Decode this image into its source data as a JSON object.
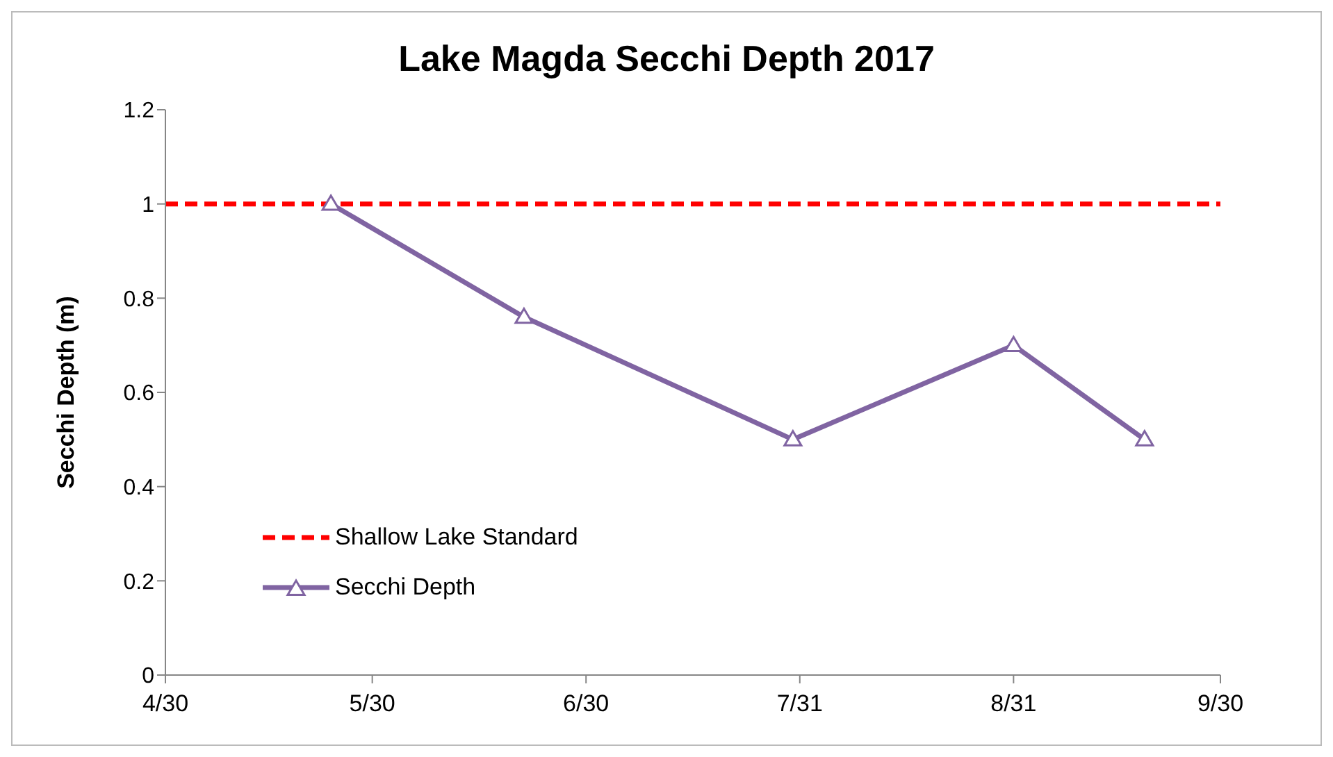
{
  "chart_data": {
    "type": "line",
    "title": "Lake Magda Secchi Depth 2017",
    "ylabel": "Secchi Depth (m)",
    "x": [
      "2017-05-24",
      "2017-06-21",
      "2017-07-30",
      "2017-08-31",
      "2017-09-19"
    ],
    "series": [
      {
        "name": "Secchi Depth",
        "color": "#8064a2",
        "values": [
          1,
          0.76,
          0.5,
          0.7,
          0.5
        ]
      }
    ],
    "ref_lines": [
      {
        "axis": "y",
        "value": 1,
        "label": "Shallow Lake Standard",
        "color": "#ff0000",
        "line_style": "dashed"
      }
    ],
    "xlim": [
      "2017-04-30",
      "2017-09-30"
    ],
    "xticks": [
      {
        "value": "2017-04-30",
        "label": "4/30"
      },
      {
        "value": "2017-05-30",
        "label": "5/30"
      },
      {
        "value": "2017-06-30",
        "label": "6/30"
      },
      {
        "value": "2017-07-31",
        "label": "7/31"
      },
      {
        "value": "2017-08-31",
        "label": "8/31"
      },
      {
        "value": "2017-09-30",
        "label": "9/30"
      }
    ],
    "ylim": [
      0,
      1.2
    ],
    "yticks": [
      0,
      0.2,
      0.4,
      0.6,
      0.8,
      1,
      1.2
    ],
    "grid": false,
    "legend": "bottom left",
    "marker": "triangle",
    "line_style": "solid"
  }
}
